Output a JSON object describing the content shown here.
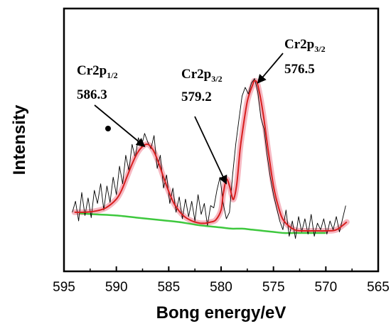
{
  "chart_data": {
    "type": "line",
    "xlabel": "Bong energy/eV",
    "ylabel": "Intensity",
    "xlim": [
      595,
      565
    ],
    "x_reversed": true,
    "y_ticks_shown": false,
    "xticks": [
      595,
      590,
      585,
      580,
      575,
      570,
      565
    ],
    "series": [
      {
        "role": "raw-data",
        "color": "#000000",
        "x": [
          594.2,
          593.9,
          593.6,
          593.3,
          593.0,
          592.7,
          592.4,
          592.1,
          591.8,
          591.5,
          591.2,
          590.9,
          590.6,
          590.3,
          590.0,
          589.7,
          589.4,
          589.1,
          588.8,
          588.5,
          588.2,
          587.9,
          587.6,
          587.3,
          587.0,
          586.7,
          586.4,
          586.1,
          585.8,
          585.5,
          585.2,
          584.9,
          584.6,
          584.3,
          584.0,
          583.7,
          583.4,
          583.1,
          582.8,
          582.5,
          582.2,
          581.9,
          581.6,
          581.3,
          581.0,
          580.7,
          580.4,
          580.1,
          579.8,
          579.5,
          579.2,
          578.9,
          578.6,
          578.3,
          578.0,
          577.7,
          577.4,
          577.1,
          576.8,
          576.5,
          576.2,
          575.9,
          575.6,
          575.3,
          575.0,
          574.7,
          574.4,
          574.1,
          573.8,
          573.5,
          573.2,
          572.9,
          572.6,
          572.3,
          572.0,
          571.7,
          571.4,
          571.1,
          570.8,
          570.5,
          570.2,
          569.9,
          569.6,
          569.3,
          569.0,
          568.7,
          568.4,
          568.1
        ],
        "y": [
          1.4,
          2.4,
          0.6,
          3.2,
          1.1,
          2.7,
          0.9,
          3.4,
          2.2,
          4.0,
          1.6,
          3.8,
          2.3,
          4.6,
          3.0,
          5.6,
          4.0,
          6.6,
          5.2,
          7.6,
          6.4,
          8.2,
          7.4,
          8.6,
          7.8,
          7.2,
          8.4,
          5.4,
          6.6,
          3.6,
          4.8,
          2.2,
          3.6,
          1.4,
          2.8,
          0.8,
          2.6,
          1.0,
          2.4,
          0.6,
          3.0,
          1.2,
          2.2,
          0.2,
          2.0,
          1.8,
          3.4,
          4.6,
          2.2,
          0.8,
          1.4,
          4.8,
          7.6,
          9.8,
          12.0,
          12.8,
          12.2,
          13.2,
          13.6,
          12.4,
          10.0,
          9.0,
          6.6,
          4.6,
          3.0,
          1.8,
          0.6,
          -0.2,
          1.6,
          -0.8,
          0.6,
          -1.0,
          1.0,
          -0.4,
          0.8,
          -0.6,
          1.2,
          -0.8,
          0.4,
          -0.2,
          0.8,
          -0.6,
          0.6,
          -0.2,
          1.0,
          -0.4,
          0.8,
          2.0
        ]
      },
      {
        "role": "fit-envelope",
        "color": "#d81e1e",
        "x": [
          594.0,
          593.0,
          592.0,
          591.0,
          590.0,
          589.5,
          589.0,
          588.5,
          588.0,
          587.5,
          587.0,
          586.5,
          586.0,
          585.5,
          585.0,
          584.5,
          584.0,
          583.5,
          583.0,
          582.5,
          582.0,
          581.5,
          581.0,
          580.5,
          580.0,
          579.8,
          579.5,
          579.2,
          579.0,
          578.8,
          578.5,
          578.2,
          578.0,
          577.5,
          577.0,
          576.8,
          576.5,
          576.0,
          575.5,
          575.0,
          574.5,
          574.0,
          573.0,
          572.0,
          571.0,
          570.0,
          569.0,
          568.0
        ],
        "y": [
          1.4,
          1.4,
          1.5,
          1.8,
          2.6,
          3.4,
          4.6,
          5.8,
          6.8,
          7.4,
          7.6,
          7.1,
          6.0,
          4.6,
          3.3,
          2.2,
          1.5,
          1.0,
          0.7,
          0.5,
          0.4,
          0.4,
          0.5,
          0.7,
          1.6,
          3.0,
          4.4,
          3.8,
          3.0,
          2.6,
          4.0,
          7.0,
          8.5,
          11.5,
          13.0,
          13.4,
          13.0,
          10.5,
          7.0,
          3.8,
          1.8,
          0.6,
          -0.2,
          -0.3,
          -0.3,
          -0.3,
          -0.2,
          0.5
        ]
      },
      {
        "role": "baseline",
        "color": "#3ec83e",
        "x": [
          593.5,
          592.0,
          590.0,
          588.0,
          586.0,
          584.0,
          582.0,
          580.0,
          579.0,
          578.0,
          577.0,
          576.0,
          575.0,
          574.0,
          573.0,
          572.0,
          570.0
        ],
        "y": [
          1.3,
          1.2,
          1.1,
          0.9,
          0.7,
          0.5,
          0.2,
          0.0,
          -0.1,
          -0.1,
          -0.2,
          -0.3,
          -0.4,
          -0.5,
          -0.5,
          -0.5,
          -0.5
        ]
      }
    ],
    "annotations": [
      {
        "id": "p1",
        "main": "Cr2p",
        "sub": "1/2",
        "value": "586.3",
        "arrow_to": [
          587.3,
          7.4
        ]
      },
      {
        "id": "p2",
        "main": "Cr2p",
        "sub": "3/2",
        "value": "579.2",
        "arrow_to": [
          579.5,
          4.0
        ]
      },
      {
        "id": "p3",
        "main": "Cr2p",
        "sub": "3/2",
        "value": "576.5",
        "arrow_to": [
          576.5,
          13.2
        ]
      }
    ]
  }
}
